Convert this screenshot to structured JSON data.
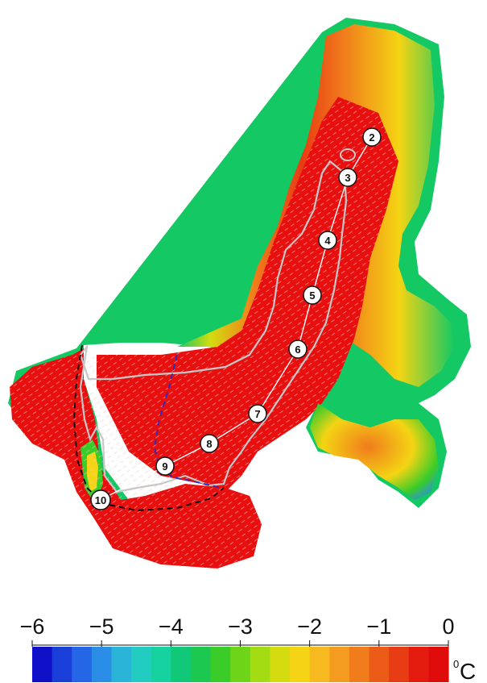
{
  "markers": [
    {
      "label": "2"
    },
    {
      "label": "3"
    },
    {
      "label": "4"
    },
    {
      "label": "5"
    },
    {
      "label": "6"
    },
    {
      "label": "7"
    },
    {
      "label": "8"
    },
    {
      "label": "9"
    },
    {
      "label": "10"
    }
  ],
  "colorbar": {
    "min": -6,
    "max": 0,
    "ticks": [
      {
        "value": -6,
        "label": "−6"
      },
      {
        "value": -5,
        "label": "−5"
      },
      {
        "value": -4,
        "label": "−4"
      },
      {
        "value": -3,
        "label": "−3"
      },
      {
        "value": -2,
        "label": "−2"
      },
      {
        "value": -1,
        "label": "−1"
      },
      {
        "value": 0,
        "label": "0"
      }
    ],
    "unit_superscript": "0",
    "unit": "C",
    "colors": [
      "#1010c8",
      "#1a3ed8",
      "#2466e6",
      "#2a8ee6",
      "#2ab4d8",
      "#22ccc0",
      "#16d2a0",
      "#10c878",
      "#1cc850",
      "#3acc28",
      "#6ed418",
      "#a4dc14",
      "#d4dc10",
      "#f4d414",
      "#f8b820",
      "#f49c20",
      "#f07c1c",
      "#ec5c18",
      "#e83c14",
      "#e41c10",
      "#e00c0c"
    ]
  },
  "colors": {
    "warm_core": "#e80f0f",
    "glacier_edge": "#14c864",
    "isotherm": "#c8c8c8",
    "boundary_black": "#000000",
    "boundary_blue": "#1f2fd0"
  }
}
